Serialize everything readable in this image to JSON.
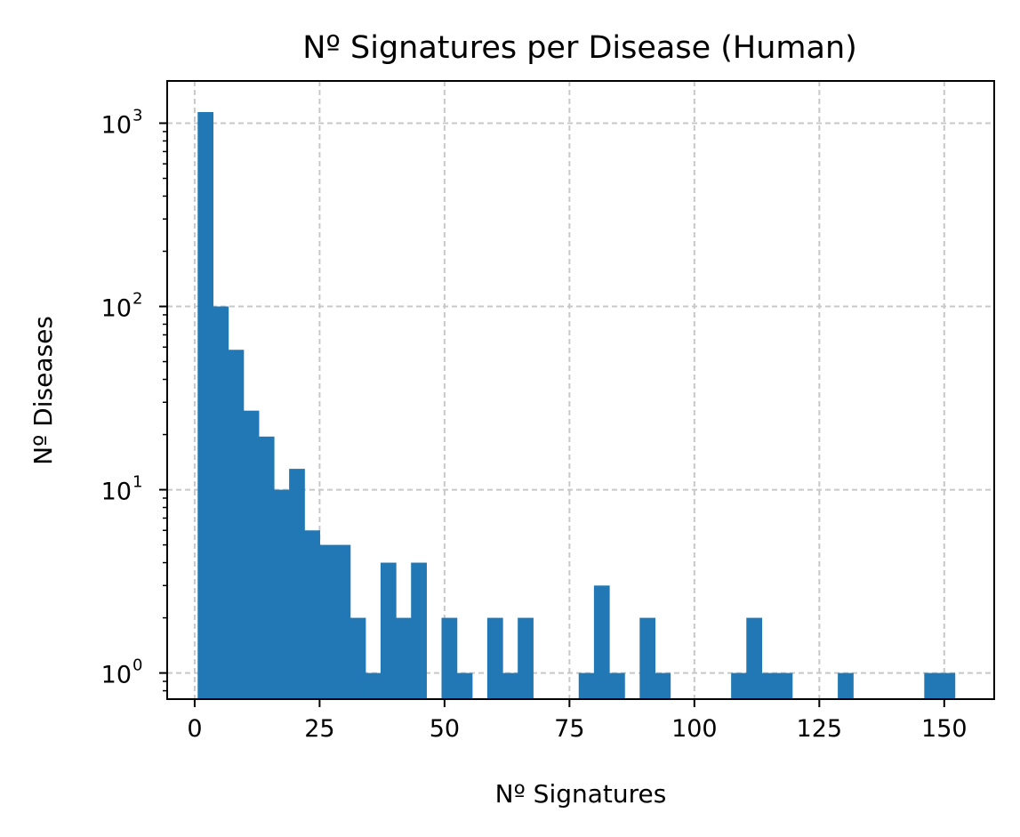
{
  "chart_data": {
    "type": "bar",
    "title": "Nº Signatures per Disease (Human)",
    "xlabel": "Nº Signatures",
    "ylabel": "Nº Diseases",
    "y_scale": "log",
    "xlim": [
      -5.5,
      160
    ],
    "ylim": [
      0.72,
      1700
    ],
    "x_ticks": [
      0,
      25,
      50,
      75,
      100,
      125,
      150
    ],
    "y_ticks": [
      {
        "value": 1,
        "base": "10",
        "exp": "0"
      },
      {
        "value": 10,
        "base": "10",
        "exp": "1"
      },
      {
        "value": 100,
        "base": "10",
        "exp": "2"
      },
      {
        "value": 1000,
        "base": "10",
        "exp": "3"
      }
    ],
    "grid": true,
    "bar_color": "#2178b4",
    "bin_width": 3.05,
    "bins": [
      {
        "x_start": 0.6,
        "value": 1150
      },
      {
        "x_start": 3.65,
        "value": 100
      },
      {
        "x_start": 6.7,
        "value": 58
      },
      {
        "x_start": 9.75,
        "value": 27
      },
      {
        "x_start": 12.8,
        "value": 19.5
      },
      {
        "x_start": 15.85,
        "value": 10
      },
      {
        "x_start": 18.9,
        "value": 13
      },
      {
        "x_start": 21.95,
        "value": 6
      },
      {
        "x_start": 25.0,
        "value": 5
      },
      {
        "x_start": 28.05,
        "value": 5
      },
      {
        "x_start": 31.1,
        "value": 2
      },
      {
        "x_start": 34.15,
        "value": 1
      },
      {
        "x_start": 37.2,
        "value": 4
      },
      {
        "x_start": 40.25,
        "value": 2
      },
      {
        "x_start": 43.3,
        "value": 4
      },
      {
        "x_start": 49.4,
        "value": 2
      },
      {
        "x_start": 52.45,
        "value": 1
      },
      {
        "x_start": 58.55,
        "value": 2
      },
      {
        "x_start": 61.6,
        "value": 1
      },
      {
        "x_start": 64.65,
        "value": 2
      },
      {
        "x_start": 76.85,
        "value": 1
      },
      {
        "x_start": 79.9,
        "value": 3
      },
      {
        "x_start": 82.95,
        "value": 1
      },
      {
        "x_start": 89.05,
        "value": 2
      },
      {
        "x_start": 92.1,
        "value": 1
      },
      {
        "x_start": 107.35,
        "value": 1
      },
      {
        "x_start": 110.4,
        "value": 2
      },
      {
        "x_start": 113.45,
        "value": 1
      },
      {
        "x_start": 116.5,
        "value": 1
      },
      {
        "x_start": 128.7,
        "value": 1
      },
      {
        "x_start": 146.0,
        "value": 1
      },
      {
        "x_start": 149.05,
        "value": 1
      }
    ]
  }
}
